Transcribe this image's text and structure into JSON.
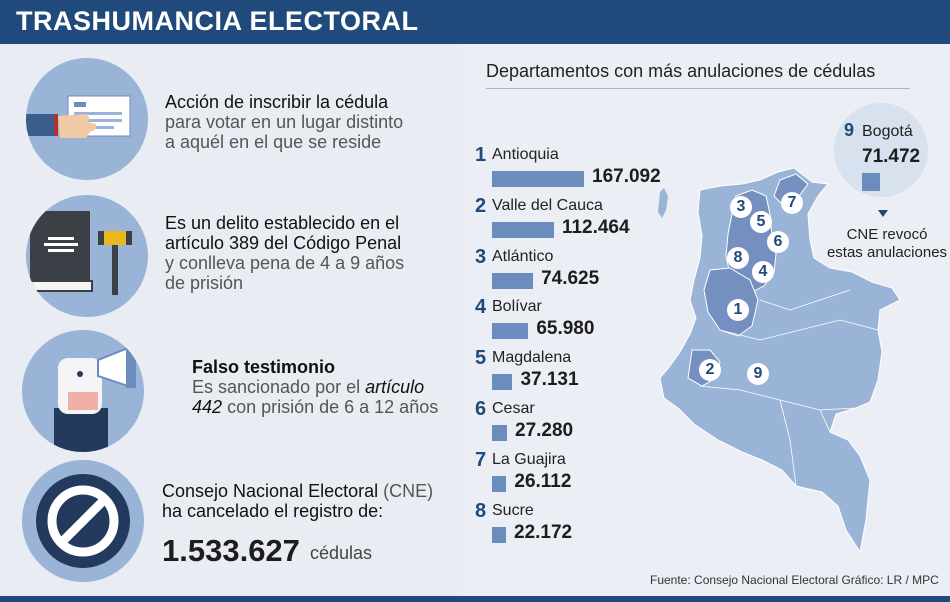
{
  "header": {
    "title": "TRASHUMANCIA ELECTORAL"
  },
  "blocks": [
    {
      "line1": "Acción de inscribir la cédula",
      "line2": "para votar en un lugar distinto",
      "line3": "a aquél en el que se reside"
    },
    {
      "line1": "Es un delito establecido en el",
      "line2": "artículo 389 del Código Penal",
      "line3": "y conlleva pena de 4 a 9 años",
      "line4": "de prisión"
    },
    {
      "line1": "Falso testimonio",
      "line2": "Es sancionado por el",
      "line2_em": "artículo",
      "line3_em": "442",
      "line3": "con prisión de 6 a 12 años"
    },
    {
      "line1a": "Consejo Nacional Electoral",
      "line1b": "(CNE)",
      "line2": "ha cancelado el registro de:",
      "total": "1.533.627",
      "unit": "cédulas"
    }
  ],
  "chart_data": {
    "type": "bar",
    "title": "Departamentos con más anulaciones de cédulas",
    "categories": [
      "Antioquia",
      "Valle del Cauca",
      "Atlántico",
      "Bolívar",
      "Magdalena",
      "Cesar",
      "La Guajira",
      "Sucre",
      "Bogotá"
    ],
    "ranks": [
      "1",
      "2",
      "3",
      "4",
      "5",
      "6",
      "7",
      "8",
      "9"
    ],
    "values": [
      167092,
      112464,
      74625,
      65980,
      37131,
      27280,
      26112,
      22172,
      71472
    ],
    "value_labels": [
      "167.092",
      "112.464",
      "74.625",
      "65.980",
      "37.131",
      "27.280",
      "26.112",
      "22.172",
      "71.472"
    ],
    "xlabel": "",
    "ylabel": "",
    "bar_color": "#6b8dbd"
  },
  "bogota_note": {
    "line1": "CNE revocó",
    "line2": "estas anulaciones"
  },
  "map": {
    "markers": [
      "1",
      "2",
      "3",
      "4",
      "5",
      "6",
      "7",
      "8",
      "9"
    ]
  },
  "source": "Fuente: Consejo Nacional Electoral Gráfico: LR / MPC",
  "colors": {
    "header": "#1f4a7b",
    "bar": "#6b8dbd",
    "map_fill": "#9ab4d8",
    "map_highlight": "#7590c0",
    "circle": "#9ab4d8"
  }
}
